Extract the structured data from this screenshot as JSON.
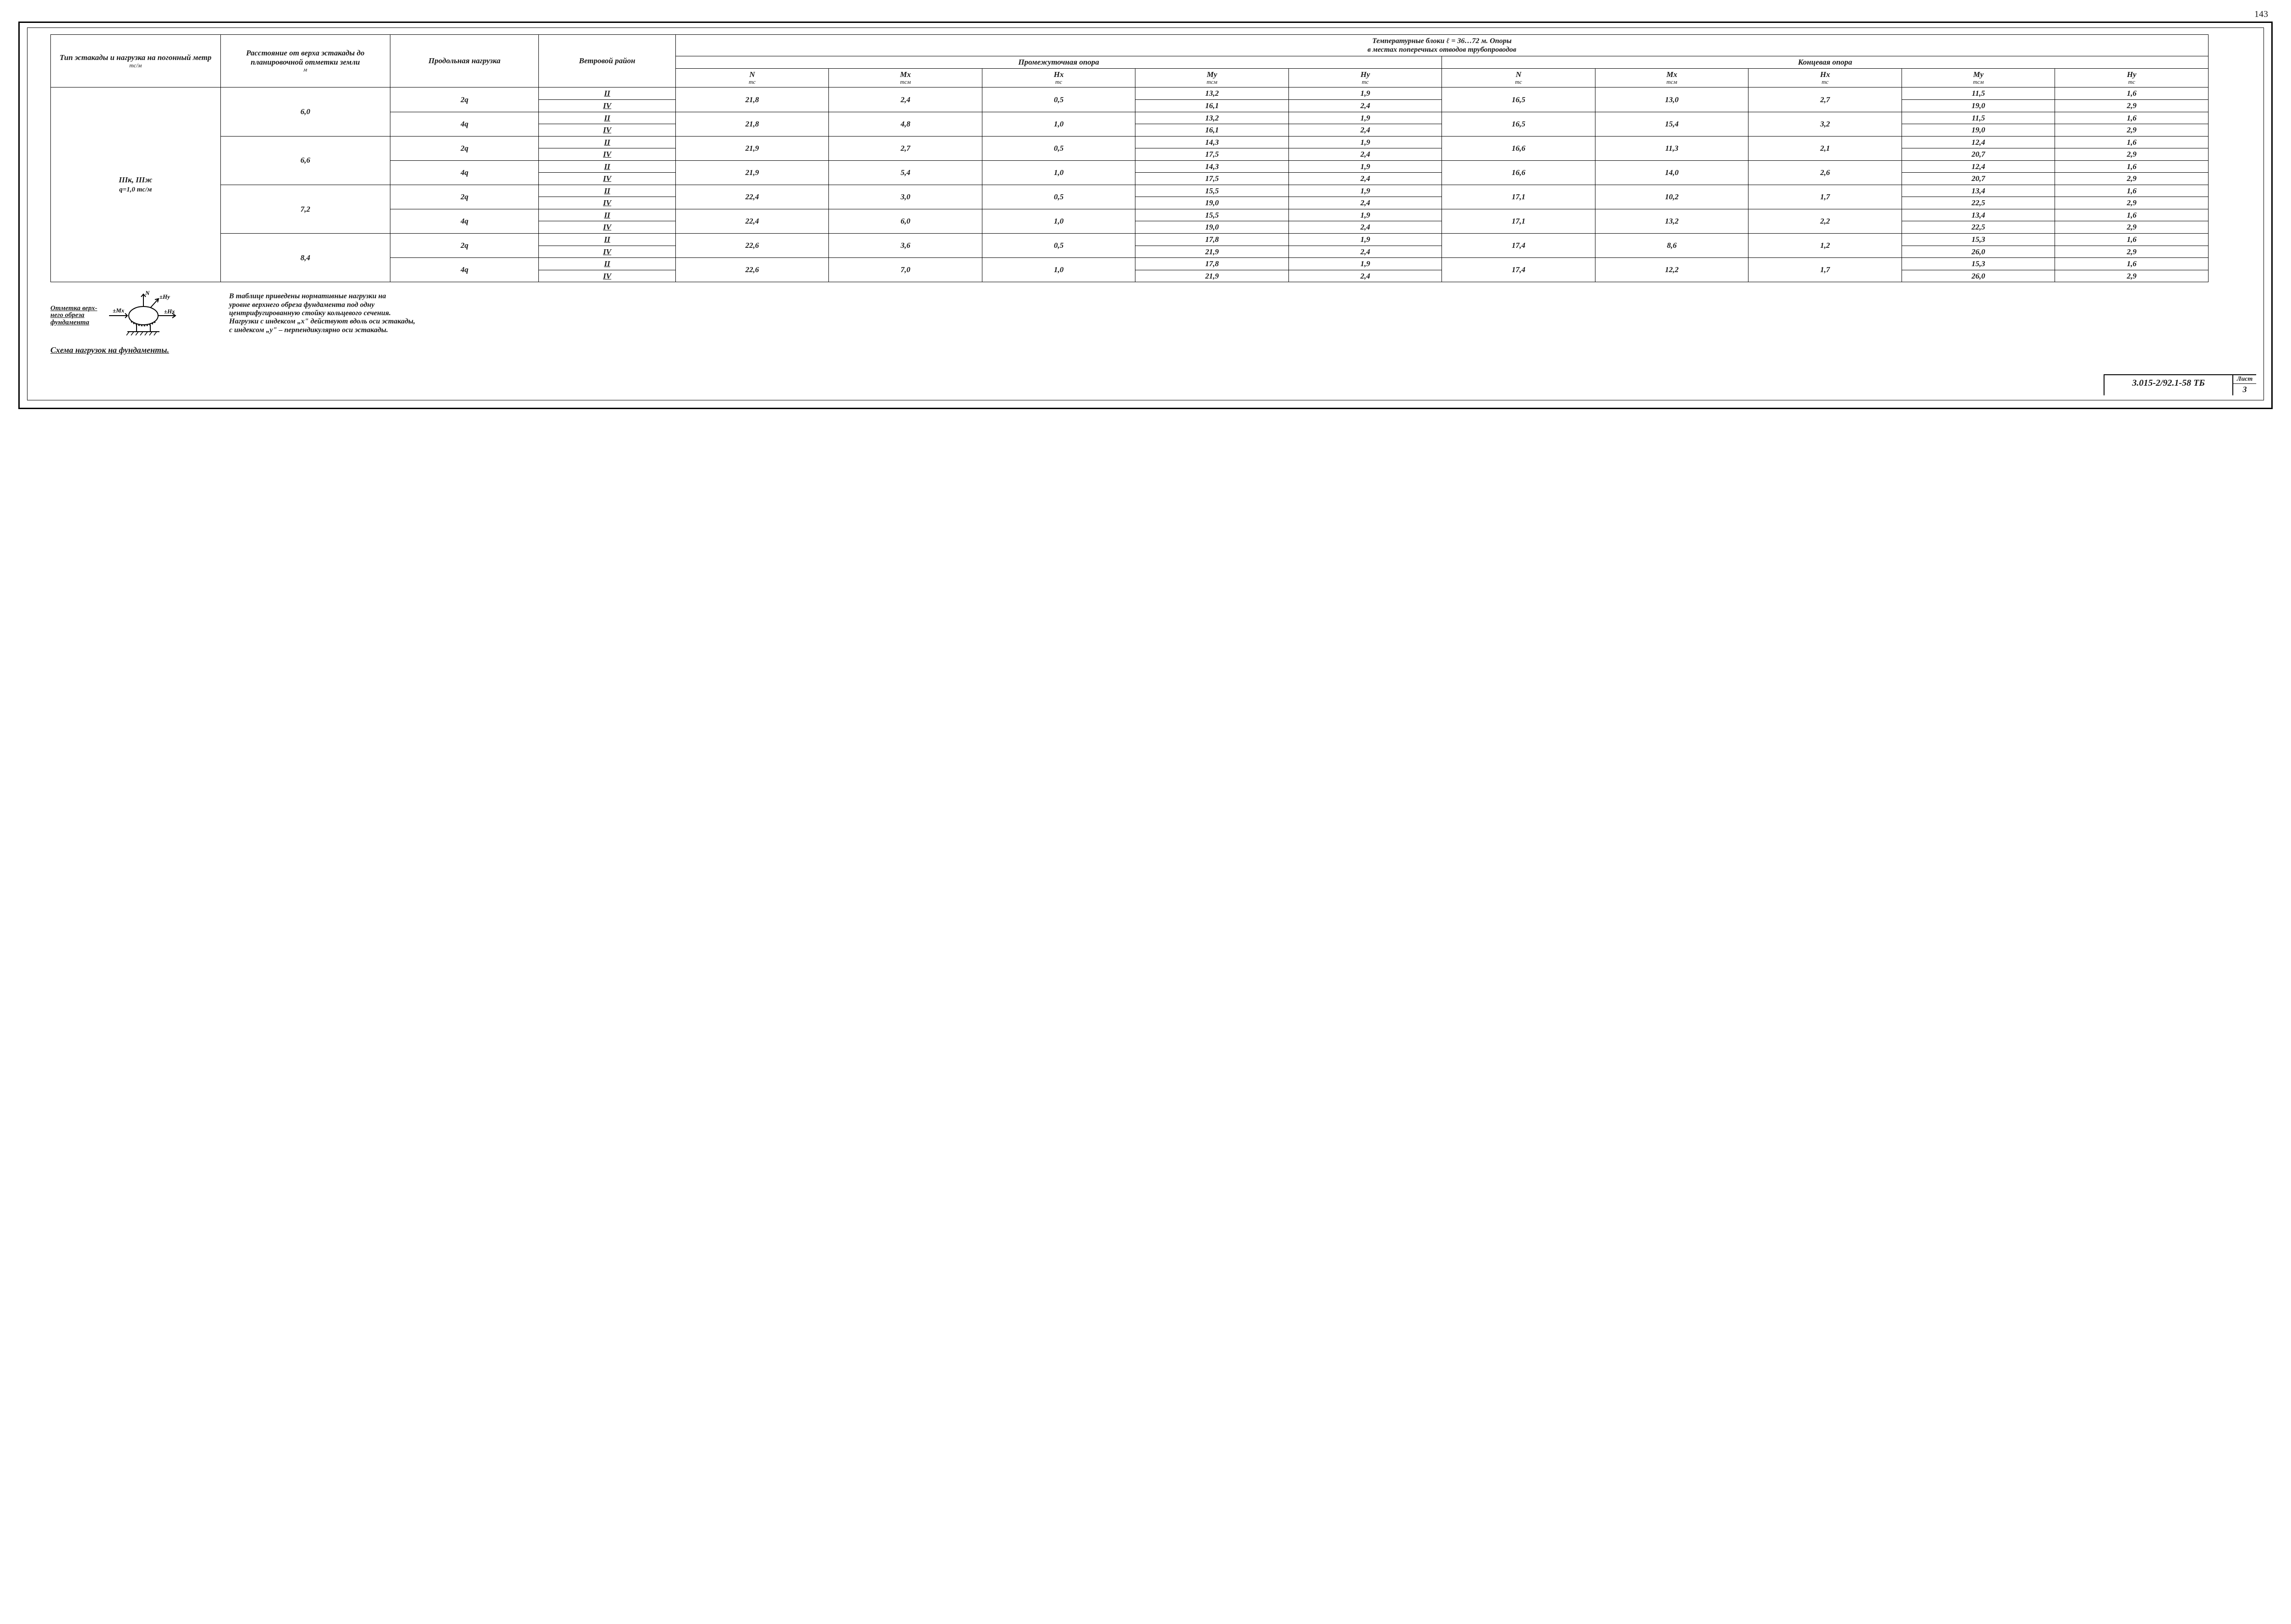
{
  "page_number_top": "143",
  "doc_number": "3.015-2/92.1-58 ТБ",
  "sheet_label": "Лист",
  "sheet_number": "3",
  "headers": {
    "col1": "Тип эстакады и нагрузка на погонный метр",
    "col1_unit": "тс/м",
    "col2": "Расстояние от верха эстакады до планировочной отметки земли",
    "col2_unit": "м",
    "col3": "Продольная нагрузка",
    "col4": "Ветровой район",
    "span_title_a": "Температурные блоки  ℓ = 36…72 м.   Опоры",
    "span_title_b": "в местах поперечных отводов трубопроводов",
    "inter": "Промежуточная опора",
    "end": "Концевая  опора",
    "N": "N",
    "N_u": "тс",
    "Mx": "Mx",
    "Mx_u": "тсм",
    "Hx": "Hx",
    "Hx_u": "тс",
    "My": "My",
    "My_u": "тсм",
    "Hy": "Hy",
    "Hy_u": "тс"
  },
  "row_type": "IIIк, IIIж",
  "row_type_q": "q=1,0 тс/м",
  "wind": {
    "II": "II",
    "IV": "IV"
  },
  "load": {
    "q2": "2q",
    "q4": "4q"
  },
  "groups": [
    {
      "dist": "6,0",
      "blocks": [
        {
          "load": "q2",
          "N": "21,8",
          "Mx": "2,4",
          "Hx": "0,5",
          "N2": "16,5",
          "Mx2": "13,0",
          "Hx2": "2,7",
          "rows": [
            {
              "w": "II",
              "My": "13,2",
              "Hy": "1,9",
              "My2": "11,5",
              "Hy2": "1,6"
            },
            {
              "w": "IV",
              "My": "16,1",
              "Hy": "2,4",
              "My2": "19,0",
              "Hy2": "2,9"
            }
          ]
        },
        {
          "load": "q4",
          "N": "21,8",
          "Mx": "4,8",
          "Hx": "1,0",
          "N2": "16,5",
          "Mx2": "15,4",
          "Hx2": "3,2",
          "rows": [
            {
              "w": "II",
              "My": "13,2",
              "Hy": "1,9",
              "My2": "11,5",
              "Hy2": "1,6"
            },
            {
              "w": "IV",
              "My": "16,1",
              "Hy": "2,4",
              "My2": "19,0",
              "Hy2": "2,9"
            }
          ]
        }
      ]
    },
    {
      "dist": "6,6",
      "blocks": [
        {
          "load": "q2",
          "N": "21,9",
          "Mx": "2,7",
          "Hx": "0,5",
          "N2": "16,6",
          "Mx2": "11,3",
          "Hx2": "2,1",
          "rows": [
            {
              "w": "II",
              "My": "14,3",
              "Hy": "1,9",
              "My2": "12,4",
              "Hy2": "1,6"
            },
            {
              "w": "IV",
              "My": "17,5",
              "Hy": "2,4",
              "My2": "20,7",
              "Hy2": "2,9"
            }
          ]
        },
        {
          "load": "q4",
          "N": "21,9",
          "Mx": "5,4",
          "Hx": "1,0",
          "N2": "16,6",
          "Mx2": "14,0",
          "Hx2": "2,6",
          "rows": [
            {
              "w": "II",
              "My": "14,3",
              "Hy": "1,9",
              "My2": "12,4",
              "Hy2": "1,6"
            },
            {
              "w": "IV",
              "My": "17,5",
              "Hy": "2,4",
              "My2": "20,7",
              "Hy2": "2,9"
            }
          ]
        }
      ]
    },
    {
      "dist": "7,2",
      "blocks": [
        {
          "load": "q2",
          "N": "22,4",
          "Mx": "3,0",
          "Hx": "0,5",
          "N2": "17,1",
          "Mx2": "10,2",
          "Hx2": "1,7",
          "rows": [
            {
              "w": "II",
              "My": "15,5",
              "Hy": "1,9",
              "My2": "13,4",
              "Hy2": "1,6"
            },
            {
              "w": "IV",
              "My": "19,0",
              "Hy": "2,4",
              "My2": "22,5",
              "Hy2": "2,9"
            }
          ]
        },
        {
          "load": "q4",
          "N": "22,4",
          "Mx": "6,0",
          "Hx": "1,0",
          "N2": "17,1",
          "Mx2": "13,2",
          "Hx2": "2,2",
          "rows": [
            {
              "w": "II",
              "My": "15,5",
              "Hy": "1,9",
              "My2": "13,4",
              "Hy2": "1,6"
            },
            {
              "w": "IV",
              "My": "19,0",
              "Hy": "2,4",
              "My2": "22,5",
              "Hy2": "2,9"
            }
          ]
        }
      ]
    },
    {
      "dist": "8,4",
      "blocks": [
        {
          "load": "q2",
          "N": "22,6",
          "Mx": "3,6",
          "Hx": "0,5",
          "N2": "17,4",
          "Mx2": "8,6",
          "Hx2": "1,2",
          "rows": [
            {
              "w": "II",
              "My": "17,8",
              "Hy": "1,9",
              "My2": "15,3",
              "Hy2": "1,6"
            },
            {
              "w": "IV",
              "My": "21,9",
              "Hy": "2,4",
              "My2": "26,0",
              "Hy2": "2,9"
            }
          ]
        },
        {
          "load": "q4",
          "N": "22,6",
          "Mx": "7,0",
          "Hx": "1,0",
          "N2": "17,4",
          "Mx2": "12,2",
          "Hx2": "1,7",
          "rows": [
            {
              "w": "II",
              "My": "17,8",
              "Hy": "1,9",
              "My2": "15,3",
              "Hy2": "1,6"
            },
            {
              "w": "IV",
              "My": "21,9",
              "Hy": "2,4",
              "My2": "26,0",
              "Hy2": "2,9"
            }
          ]
        }
      ]
    }
  ],
  "diagram": {
    "label1": "Отметка верх-",
    "label2": "него обреза",
    "label3": "фундамента",
    "N": "N",
    "Hy": "±Hy",
    "Mx": "±Mx",
    "Hx": "±Hx",
    "caption": "Схема нагрузок на фундаменты."
  },
  "note": {
    "l1": "В таблице приведены нормативные нагрузки на",
    "l2": "уровне верхнего обреза фундамента под одну",
    "l3": "центрифугированную стойку кольцевого сечения.",
    "l4": "Нагрузки с индексом „x\" действуют вдоль оси эстакады,",
    "l5": "с индексом „y\" – перпендикулярно оси эстакады."
  },
  "style": {
    "border_color": "#000000",
    "bg": "#ffffff",
    "text": "#1a1a1a",
    "font_main_pt": 17,
    "font_header_pt": 14
  }
}
